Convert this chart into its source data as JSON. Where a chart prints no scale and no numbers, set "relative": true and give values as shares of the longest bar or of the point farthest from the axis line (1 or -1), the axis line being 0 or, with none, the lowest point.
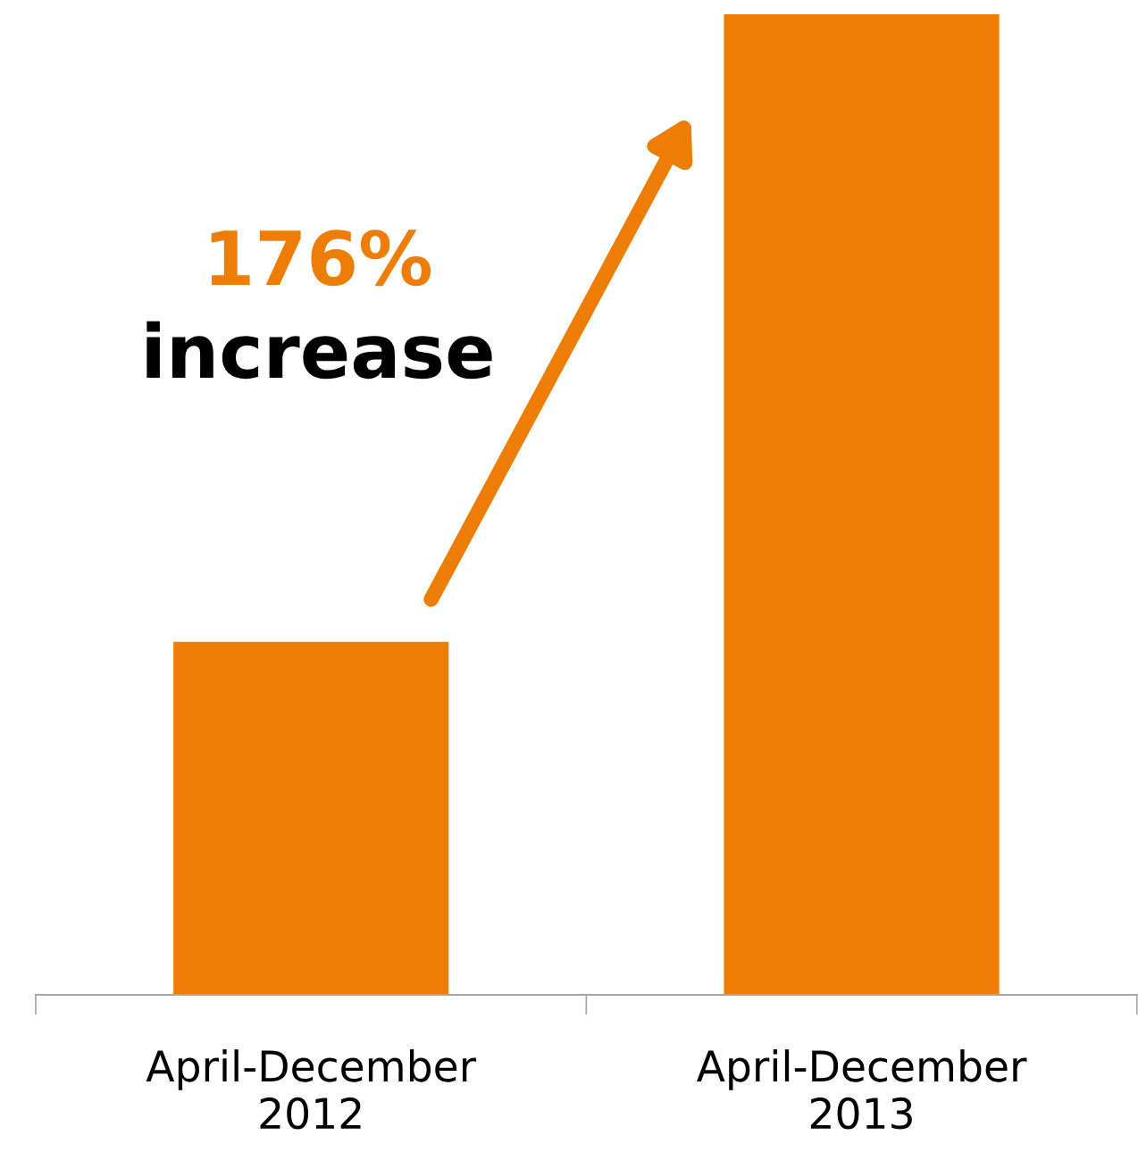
{
  "chart_data": {
    "type": "bar",
    "relative": true,
    "categories": [
      "April-December\n2012",
      "April-December\n2013"
    ],
    "values": [
      0.36,
      1
    ],
    "color": "#ed7d05",
    "annotations": [
      "176%",
      "increase"
    ],
    "grid": false,
    "legend": false
  }
}
